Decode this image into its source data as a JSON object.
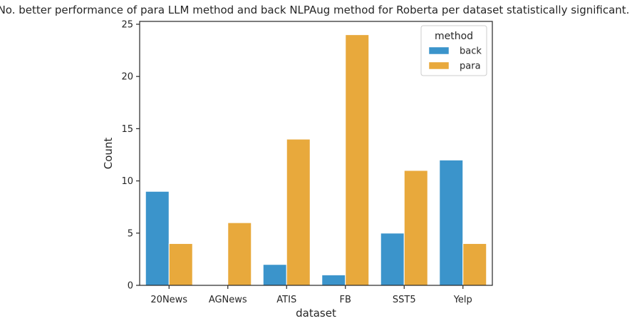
{
  "chart_data": {
    "type": "bar",
    "title": "No. better performance of para LLM method and back NLPAug method for Roberta per dataset statistically significant.",
    "xlabel": "dataset",
    "ylabel": "Count",
    "categories": [
      "20News",
      "AGNews",
      "ATIS",
      "FB",
      "SST5",
      "Yelp"
    ],
    "series": [
      {
        "name": "back",
        "color": "#3b94cb",
        "values": [
          9,
          0,
          2,
          1,
          5,
          12
        ]
      },
      {
        "name": "para",
        "color": "#e8a93c",
        "values": [
          4,
          6,
          14,
          24,
          11,
          4
        ]
      }
    ],
    "ylim": [
      0,
      25
    ],
    "yticks": [
      0,
      5,
      10,
      15,
      20,
      25
    ],
    "grid": false,
    "legend": {
      "title": "method",
      "placement": "top-right"
    }
  }
}
